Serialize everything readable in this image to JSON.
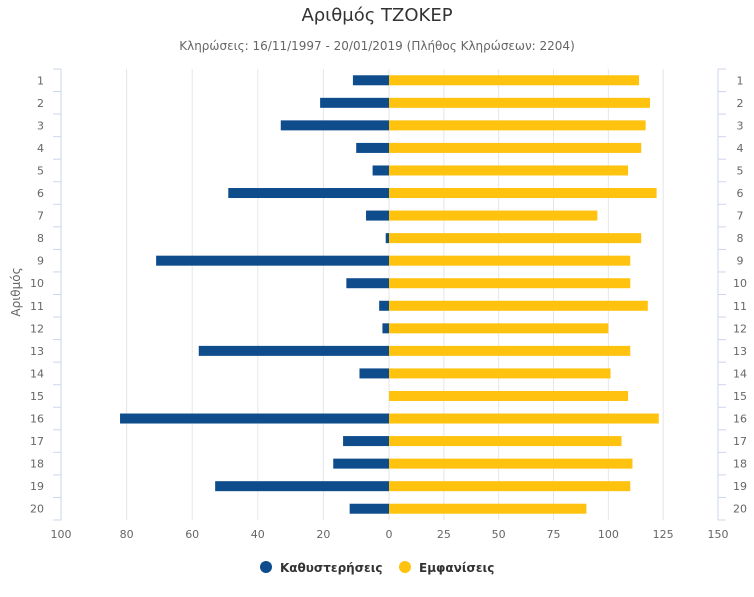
{
  "chart_data": {
    "type": "bar",
    "orientation": "horizontal-butterfly",
    "title": "Αριθμός ΤΖΟΚΕΡ",
    "subtitle": "Κληρώσεις: 16/11/1997 - 20/01/2019 (Πλήθος Κληρώσεων: 2204)",
    "ylabel": "Αριθμός",
    "categories": [
      "1",
      "2",
      "3",
      "4",
      "5",
      "6",
      "7",
      "8",
      "9",
      "10",
      "11",
      "12",
      "13",
      "14",
      "15",
      "16",
      "17",
      "18",
      "19",
      "20"
    ],
    "series": [
      {
        "name": "Καθυστερήσεις",
        "color": "#0e4c8c",
        "side": "left",
        "scale_ticks": [
          100,
          80,
          60,
          40,
          20,
          0
        ],
        "xlim": [
          0,
          100
        ],
        "values": [
          11,
          21,
          33,
          10,
          5,
          49,
          7,
          1,
          71,
          13,
          3,
          2,
          58,
          9,
          0,
          82,
          14,
          17,
          53,
          12
        ]
      },
      {
        "name": "Εμφανίσεις",
        "color": "#ffc20e",
        "side": "right",
        "scale_ticks": [
          25,
          50,
          75,
          100,
          125,
          150
        ],
        "xlim": [
          0,
          150
        ],
        "values": [
          114,
          119,
          117,
          115,
          109,
          122,
          95,
          115,
          110,
          110,
          118,
          100,
          110,
          101,
          109,
          123,
          106,
          111,
          110,
          90
        ]
      }
    ],
    "legend_position": "bottom-center",
    "grid": true
  }
}
